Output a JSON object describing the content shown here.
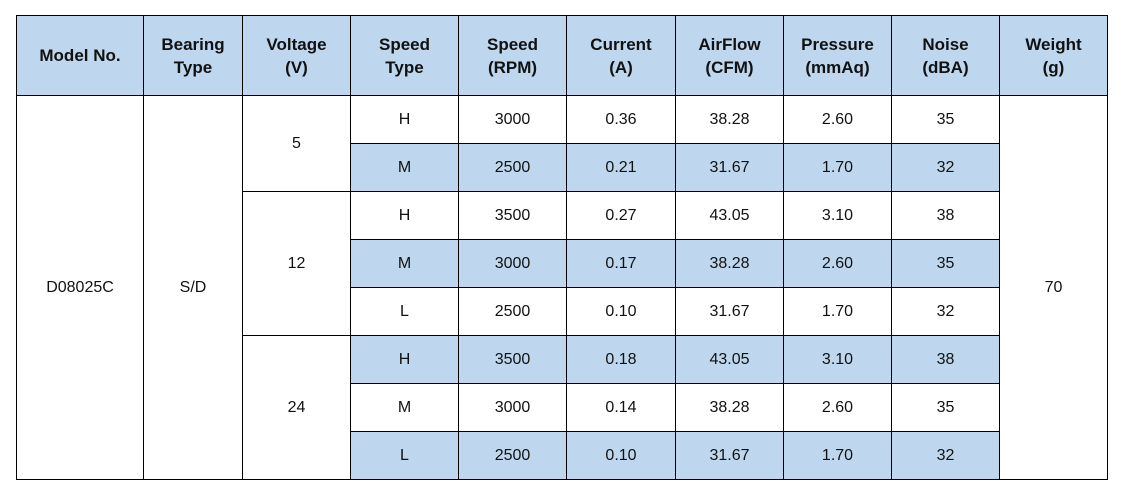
{
  "headers": [
    {
      "line1": "Model No.",
      "line2": ""
    },
    {
      "line1": "Bearing",
      "line2": "Type"
    },
    {
      "line1": "Voltage",
      "line2": "(V)"
    },
    {
      "line1": "Speed",
      "line2": "Type"
    },
    {
      "line1": "Speed",
      "line2": "(RPM)"
    },
    {
      "line1": "Current",
      "line2": "(A)"
    },
    {
      "line1": "AirFlow",
      "line2": "(CFM)"
    },
    {
      "line1": "Pressure",
      "line2": "(mmAq)"
    },
    {
      "line1": "Noise",
      "line2": "(dBA)"
    },
    {
      "line1": "Weight",
      "line2": "(g)"
    }
  ],
  "model": "D08025C",
  "bearing": "S/D",
  "weight": "70",
  "voltage_groups": [
    {
      "voltage": "5",
      "rows": [
        {
          "speed_type": "H",
          "rpm": "3000",
          "current": "0.36",
          "airflow": "38.28",
          "pressure": "2.60",
          "noise": "35"
        },
        {
          "speed_type": "M",
          "rpm": "2500",
          "current": "0.21",
          "airflow": "31.67",
          "pressure": "1.70",
          "noise": "32"
        }
      ]
    },
    {
      "voltage": "12",
      "rows": [
        {
          "speed_type": "H",
          "rpm": "3500",
          "current": "0.27",
          "airflow": "43.05",
          "pressure": "3.10",
          "noise": "38"
        },
        {
          "speed_type": "M",
          "rpm": "3000",
          "current": "0.17",
          "airflow": "38.28",
          "pressure": "2.60",
          "noise": "35"
        },
        {
          "speed_type": "L",
          "rpm": "2500",
          "current": "0.10",
          "airflow": "31.67",
          "pressure": "1.70",
          "noise": "32"
        }
      ]
    },
    {
      "voltage": "24",
      "rows": [
        {
          "speed_type": "H",
          "rpm": "3500",
          "current": "0.18",
          "airflow": "43.05",
          "pressure": "3.10",
          "noise": "38"
        },
        {
          "speed_type": "M",
          "rpm": "3000",
          "current": "0.14",
          "airflow": "38.28",
          "pressure": "2.60",
          "noise": "35"
        },
        {
          "speed_type": "L",
          "rpm": "2500",
          "current": "0.10",
          "airflow": "31.67",
          "pressure": "1.70",
          "noise": "32"
        }
      ]
    }
  ],
  "colors": {
    "header_fill": "#bed7ee",
    "row_shade": "#bed7ee",
    "border": "#000000"
  }
}
